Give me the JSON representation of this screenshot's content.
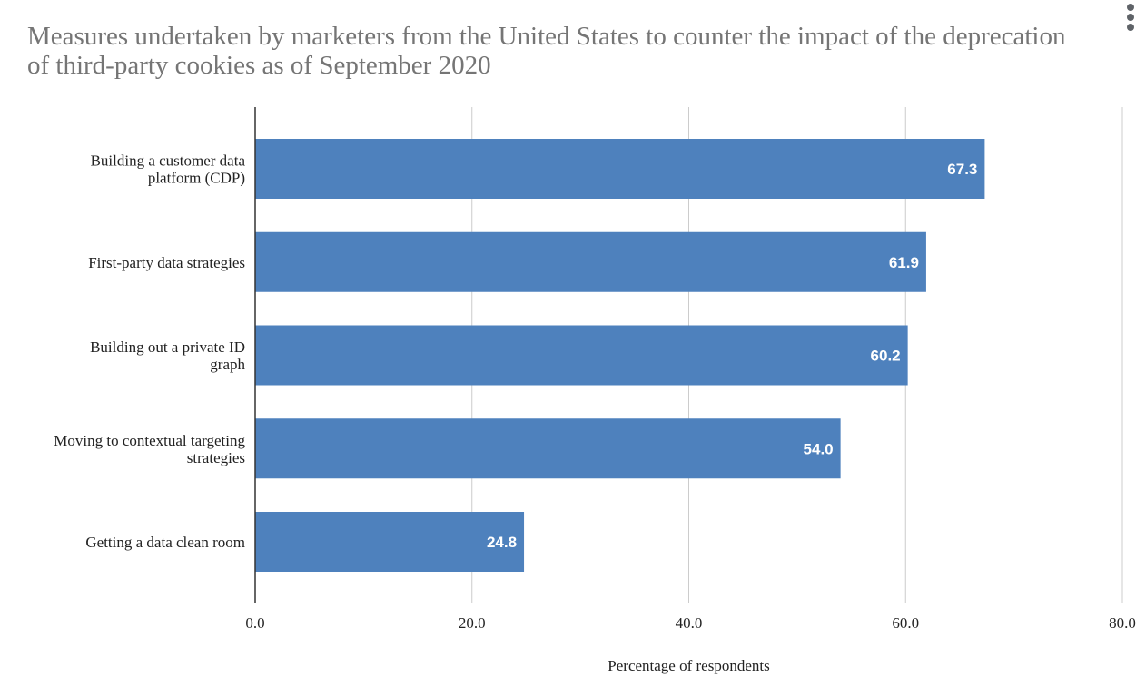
{
  "chart_data": {
    "type": "bar",
    "orientation": "horizontal",
    "title": "Measures undertaken by marketers from the United States to counter the impact of the deprecation of third-party cookies as of September 2020",
    "categories": [
      [
        "Building a customer data",
        "platform (CDP)"
      ],
      [
        "First-party data strategies"
      ],
      [
        "Building out a private ID",
        "graph"
      ],
      [
        "Moving to contextual targeting",
        "strategies"
      ],
      [
        "Getting a data clean room"
      ]
    ],
    "values": [
      67.3,
      61.9,
      60.2,
      54.0,
      24.8
    ],
    "data_labels": [
      "67.3",
      "61.9",
      "60.2",
      "54.0",
      "24.8"
    ],
    "xlabel": "Percentage of respondents",
    "ylabel": "",
    "xlim": [
      0,
      80
    ],
    "xticks": [
      0,
      20,
      40,
      60,
      80
    ],
    "xtick_labels": [
      "0.0",
      "20.0",
      "40.0",
      "60.0",
      "80.0"
    ],
    "grid": "vertical",
    "legend": "none",
    "colors": {
      "bar": "#4e81bd",
      "grid": "#cccccc",
      "axis": "#333333",
      "title": "#757575",
      "menu_icon": "#5f6368"
    }
  },
  "menu": {
    "icon": "more-vert-icon"
  }
}
